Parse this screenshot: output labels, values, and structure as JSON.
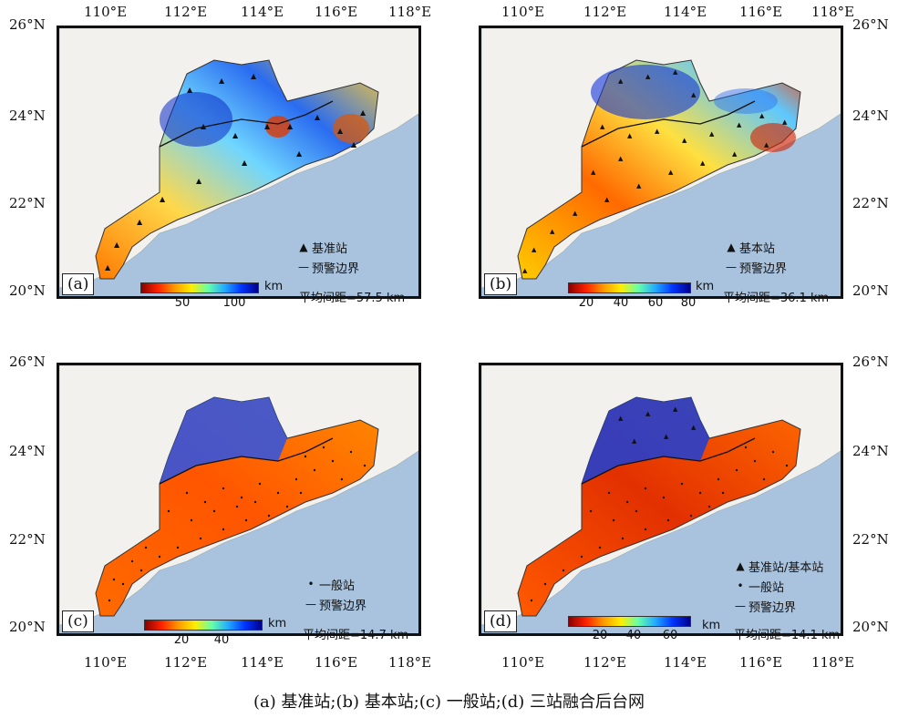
{
  "axes": {
    "lon_labels": [
      "110°E",
      "112°E",
      "114°E",
      "116°E",
      "118°E"
    ],
    "lat_labels": [
      "26°N",
      "24°N",
      "22°N",
      "20°N"
    ]
  },
  "panels": [
    {
      "id": "a",
      "label": "(a)",
      "legend": [
        {
          "symbol": "▲",
          "text": "基准站"
        },
        {
          "symbol": "—",
          "text": "预警边界"
        }
      ],
      "mean_text": "平均间距=57.5 km",
      "colorbar": {
        "ticks": [
          "50",
          "100"
        ],
        "unit": "km"
      },
      "lat_side": "left",
      "lon_side": "top"
    },
    {
      "id": "b",
      "label": "(b)",
      "legend": [
        {
          "symbol": "▲",
          "text": "基本站"
        },
        {
          "symbol": "—",
          "text": "预警边界"
        }
      ],
      "mean_text": "平均间距=36.1 km",
      "colorbar": {
        "ticks": [
          "20",
          "40",
          "60",
          "80"
        ],
        "unit": "km"
      },
      "lat_side": "right",
      "lon_side": "top"
    },
    {
      "id": "c",
      "label": "(c)",
      "legend": [
        {
          "symbol": "•",
          "text": "一般站"
        },
        {
          "symbol": "—",
          "text": "预警边界"
        }
      ],
      "mean_text": "平均间距=14.7 km",
      "colorbar": {
        "ticks": [
          "20",
          "40"
        ],
        "unit": "km"
      },
      "lat_side": "left",
      "lon_side": "bottom"
    },
    {
      "id": "d",
      "label": "(d)",
      "legend": [
        {
          "symbol": "▲",
          "text": "基准站/基本站"
        },
        {
          "symbol": "•",
          "text": "一般站"
        },
        {
          "symbol": "—",
          "text": "预警边界"
        }
      ],
      "mean_text": "平均间距=14.1 km",
      "colorbar": {
        "ticks": [
          "20",
          "40",
          "60"
        ],
        "unit": "km"
      },
      "lat_side": "right",
      "lon_side": "bottom"
    }
  ],
  "caption": "(a) 基准站;(b) 基本站;(c) 一般站;(d) 三站融合后台网",
  "colors": {
    "sea": "#a9c3de",
    "land": "#f2f1ee",
    "colormap": [
      "#8b0000",
      "#ff2200",
      "#ff9900",
      "#ffee00",
      "#66ffaa",
      "#22aaff",
      "#0033ff",
      "#00008b"
    ]
  }
}
